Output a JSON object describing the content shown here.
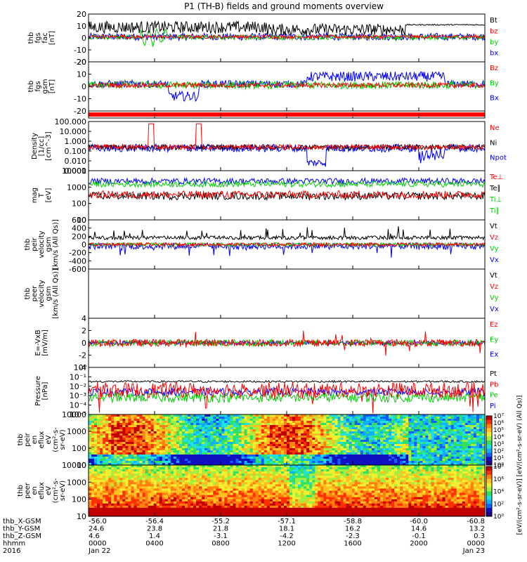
{
  "title": "P1 (TH-B) fields and ground moments overview",
  "colors": {
    "black": "#000000",
    "red": "#ff0000",
    "green": "#00cc00",
    "blue": "#0000ff"
  },
  "chart_data": {
    "type": "line",
    "panels": [
      {
        "id": "fgs-fac",
        "ylabel": [
          "thb",
          "fgs",
          "fac",
          "[nT]"
        ],
        "ticks": [
          "20",
          "10",
          "0",
          "-10",
          "-20"
        ],
        "ylim": [
          -20,
          20
        ],
        "log": false,
        "legend": [
          {
            "name": "Bt",
            "color": "#000000"
          },
          {
            "name": "bz",
            "color": "#ff0000"
          },
          {
            "name": "by",
            "color": "#00cc00"
          },
          {
            "name": "bx",
            "color": "#0000ff"
          }
        ]
      },
      {
        "id": "fgs-gsm",
        "ylabel": [
          "thb",
          "fgs",
          "gsm",
          "[nT]"
        ],
        "ticks": [
          "20",
          "10",
          "0",
          "-10",
          "-20"
        ],
        "ylim": [
          -20,
          20
        ],
        "log": false,
        "legend": [
          {
            "name": "Bz",
            "color": "#ff0000"
          },
          {
            "name": "By",
            "color": "#00cc00"
          },
          {
            "name": "Bx",
            "color": "#0000ff"
          }
        ]
      },
      {
        "id": "flag",
        "ylabel": [],
        "ticks": [],
        "ylim": [
          0,
          1
        ],
        "log": false,
        "legend": []
      },
      {
        "id": "density",
        "ylabel": [
          "Density",
          "[1/cc]",
          "[cm^-3]"
        ],
        "ticks": [
          "100.000",
          "10.000",
          "1.000",
          "0.100",
          "0.010",
          "0.001"
        ],
        "ylim": [
          0.001,
          100
        ],
        "log": true,
        "legend": [
          {
            "name": "Ne",
            "color": "#ff0000"
          },
          {
            "name": "Ni",
            "color": "#000000"
          },
          {
            "name": "Npot",
            "color": "#0000ff"
          }
        ]
      },
      {
        "id": "temperature",
        "ylabel": [
          "mag",
          "T",
          "[eV]"
        ],
        "ticks": [
          "10000",
          "1000",
          "100",
          "10"
        ],
        "ylim": [
          5,
          10000
        ],
        "log": true,
        "legend": [
          {
            "name": "Te⊥",
            "color": "#ff0000"
          },
          {
            "name": "Te∥",
            "color": "#000000"
          },
          {
            "name": "Ti⊥",
            "color": "#00cc00"
          },
          {
            "name": "Ti∥",
            "color": "#00cc00"
          }
        ]
      },
      {
        "id": "peir-velocity",
        "ylabel": [
          "thb",
          "peir",
          "velocity",
          "gsm",
          "[km/s (All Qs)]"
        ],
        "ticks": [
          "600",
          "400",
          "200",
          "0",
          "-200",
          "-400",
          "-600"
        ],
        "ylim": [
          -600,
          600
        ],
        "log": false,
        "legend": [
          {
            "name": "Vt",
            "color": "#000000"
          },
          {
            "name": "Vz",
            "color": "#ff0000"
          },
          {
            "name": "Vy",
            "color": "#00cc00"
          },
          {
            "name": "Vx",
            "color": "#0000ff"
          }
        ]
      },
      {
        "id": "peer-velocity",
        "ylabel": [
          "thb",
          "peer",
          "velocity",
          "gsm",
          "[km/s (All Qs)]"
        ],
        "ticks": [],
        "ylim": [
          0,
          1
        ],
        "log": false,
        "legend": [
          {
            "name": "Vt",
            "color": "#000000"
          },
          {
            "name": "Vz",
            "color": "#ff0000"
          },
          {
            "name": "Vy",
            "color": "#00cc00"
          },
          {
            "name": "Vx",
            "color": "#0000ff"
          }
        ]
      },
      {
        "id": "efield",
        "ylabel": [
          "E=-VxB",
          "[mV/m]"
        ],
        "ticks": [
          "4",
          "2",
          "0",
          "-2",
          "-4"
        ],
        "ylim": [
          -4,
          4
        ],
        "log": false,
        "legend": [
          {
            "name": "Ez",
            "color": "#ff0000"
          },
          {
            "name": "Ey",
            "color": "#00cc00"
          },
          {
            "name": "Ex",
            "color": "#0000ff"
          }
        ]
      },
      {
        "id": "pressure",
        "ylabel": [
          "Pressure",
          "[nPa]"
        ],
        "ticks": [
          "10⁰",
          "10⁻¹",
          "10⁻²",
          "10⁻³",
          "10⁻⁴",
          "10⁻⁵"
        ],
        "ylim": [
          1e-05,
          1
        ],
        "log": true,
        "legend": [
          {
            "name": "Pt",
            "color": "#000000"
          },
          {
            "name": "Pb",
            "color": "#ff0000"
          },
          {
            "name": "Pe",
            "color": "#00cc00"
          },
          {
            "name": "Pi",
            "color": "#0000ff"
          }
        ]
      },
      {
        "id": "peir-spec",
        "ylabel": [
          "thb",
          "peir",
          "en",
          "eflux",
          "eV",
          "(cm²-s-",
          "sr-eV)"
        ],
        "ticks": [
          "10000",
          "1000",
          "100",
          "10"
        ],
        "ylim": [
          5,
          20000
        ],
        "log": true,
        "legend": []
      },
      {
        "id": "peer-spec",
        "ylabel": [
          "thb",
          "peer",
          "en",
          "eflux",
          "eV",
          "(cm²-s-",
          "sr-eV)"
        ],
        "ticks": [
          "10000",
          "1000",
          "100",
          "10"
        ],
        "ylim": [
          5,
          20000
        ],
        "log": true,
        "legend": []
      }
    ],
    "colorbar1": {
      "ticks": [
        "10⁷",
        "10⁶",
        "10⁵",
        "10⁴",
        "10³",
        "10²",
        "10¹",
        "10⁰"
      ]
    },
    "colorbar2": {
      "ticks": [
        "10⁸",
        "10⁶",
        "10⁴",
        "10²",
        "10⁰"
      ]
    },
    "colorbar_label": "[eV/(cm²-s-sr-eV)]  [eV/(cm²-s-sr-eV) (All Qs)]",
    "ephemeris": [
      {
        "label": "thb_X-GSM",
        "values": [
          "-56.0",
          "-56.4",
          "-55.2",
          "-57.1",
          "-58.8",
          "-60.0",
          "-60.8"
        ]
      },
      {
        "label": "thb_Y-GSM",
        "values": [
          "24.6",
          "23.8",
          "21.8",
          "18.1",
          "16.2",
          "14.6",
          "13.2"
        ]
      },
      {
        "label": "thb_Z-GSM",
        "values": [
          "4.6",
          "1.4",
          "-3.1",
          "-4.2",
          "-2.3",
          "-0.1",
          "0.3"
        ]
      },
      {
        "label": "hhmm",
        "values": [
          "0000",
          "0400",
          "0800",
          "1200",
          "1600",
          "2000",
          "0000"
        ]
      },
      {
        "label": "2016",
        "values": [
          "Jan 22",
          "",
          "",
          "",
          "",
          "",
          "Jan 23"
        ]
      }
    ]
  }
}
